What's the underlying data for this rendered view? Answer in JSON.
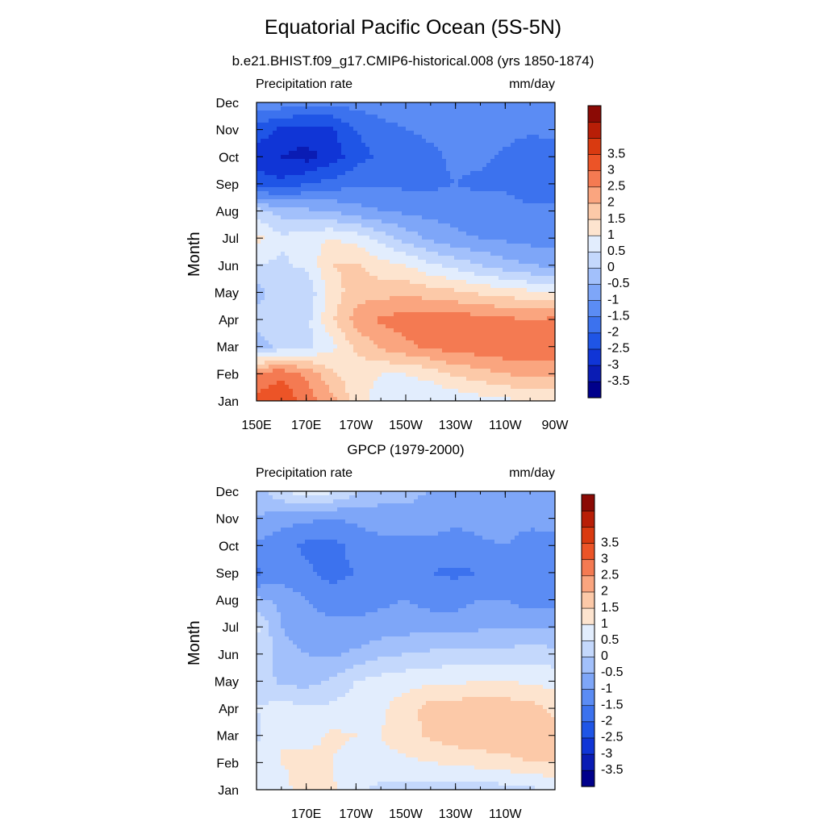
{
  "figure": {
    "title": "Equatorial Pacific Ocean (5S-5N)",
    "subtitle": "b.e21.BHIST.f09_g17.CMIP6-historical.008 (yrs 1850-1874)",
    "panel2_subtitle": "GPCP (1979-2000)"
  },
  "colors": {
    "colorbar": [
      "#00008b",
      "#0a1cb4",
      "#1035d6",
      "#1f55e6",
      "#3c72ee",
      "#5b8cf4",
      "#7ea6f8",
      "#a2c0fb",
      "#c4d8fc",
      "#e2edfd",
      "#fde4cf",
      "#fcc9a8",
      "#faa57f",
      "#f47a52",
      "#ec5427",
      "#d93a10",
      "#b81e07",
      "#8b0a05"
    ]
  },
  "chart_data": [
    {
      "type": "heatmap",
      "title": "b.e21.BHIST.f09_g17.CMIP6-historical.008 (yrs 1850-1874)",
      "left_label": "Precipitation rate",
      "right_label": "mm/day",
      "ylabel": "Month",
      "xlabel": "",
      "x_ticks": [
        "150E",
        "170E",
        "170W",
        "150W",
        "130W",
        "110W",
        "90W"
      ],
      "y_ticks": [
        "Jan",
        "Feb",
        "Mar",
        "Apr",
        "May",
        "Jun",
        "Jul",
        "Aug",
        "Sep",
        "Oct",
        "Nov",
        "Dec"
      ],
      "xlim": [
        150,
        270
      ],
      "colorbar_levels": [
        "-3.5",
        "-3",
        "-2.5",
        "-2",
        "-1.5",
        "-1",
        "-0.5",
        "0",
        "0.5",
        "1",
        "1.5",
        "2",
        "2.5",
        "3",
        "3.5"
      ],
      "grid_x": [
        150,
        160,
        170,
        180,
        190,
        200,
        210,
        220,
        230,
        240,
        250,
        260,
        270
      ],
      "grid_y": [
        "Jan",
        "Feb",
        "Mar",
        "Apr",
        "May",
        "Jun",
        "Jul",
        "Aug",
        "Sep",
        "Oct",
        "Nov",
        "Dec"
      ],
      "values": [
        [
          3.2,
          3.4,
          2.8,
          2.2,
          1.2,
          0.8,
          0.6,
          0.5,
          0.6,
          0.8,
          0.9,
          1.0,
          1.0
        ],
        [
          2.6,
          2.9,
          2.4,
          1.6,
          1.2,
          1.0,
          1.0,
          1.2,
          1.6,
          1.8,
          2.0,
          2.2,
          2.2
        ],
        [
          -0.3,
          0.2,
          0.4,
          0.8,
          1.6,
          2.1,
          2.4,
          2.6,
          2.8,
          2.8,
          2.9,
          2.9,
          2.8
        ],
        [
          0.2,
          0.4,
          0.3,
          1.4,
          2.2,
          2.6,
          2.7,
          2.9,
          2.8,
          2.7,
          2.6,
          2.5,
          2.6
        ],
        [
          -0.2,
          0.3,
          0.1,
          1.2,
          1.8,
          1.8,
          1.9,
          1.7,
          1.6,
          1.4,
          1.3,
          1.1,
          1.0
        ],
        [
          0.5,
          0.4,
          0.6,
          1.5,
          1.6,
          1.2,
          1.0,
          0.6,
          0.3,
          0.0,
          -0.3,
          -0.5,
          -0.6
        ],
        [
          1.2,
          0.6,
          0.8,
          1.0,
          0.8,
          0.3,
          -0.2,
          -0.6,
          -0.9,
          -1.0,
          -1.1,
          -1.2,
          -1.2
        ],
        [
          0.2,
          -0.2,
          -0.4,
          -0.5,
          -0.8,
          -1.0,
          -1.1,
          -1.2,
          -1.2,
          -1.3,
          -1.3,
          -1.4,
          -1.4
        ],
        [
          -2.2,
          -2.4,
          -2.0,
          -1.8,
          -1.6,
          -1.6,
          -1.6,
          -1.6,
          -1.5,
          -1.6,
          -1.6,
          -1.8,
          -1.8
        ],
        [
          -2.8,
          -3.0,
          -3.2,
          -2.8,
          -2.2,
          -1.9,
          -1.8,
          -1.6,
          -1.4,
          -1.4,
          -1.6,
          -1.9,
          -1.8
        ],
        [
          -2.2,
          -2.6,
          -2.7,
          -2.6,
          -2.0,
          -1.7,
          -1.5,
          -1.4,
          -1.3,
          -1.3,
          -1.3,
          -1.4,
          -1.3
        ],
        [
          -1.1,
          -1.2,
          -1.4,
          -1.4,
          -1.3,
          -1.2,
          -1.2,
          -1.1,
          -1.1,
          -1.0,
          -1.0,
          -1.0,
          -1.0
        ]
      ]
    },
    {
      "type": "heatmap",
      "title": "GPCP (1979-2000)",
      "left_label": "Precipitation rate",
      "right_label": "mm/day",
      "ylabel": "Month",
      "xlabel": "",
      "x_ticks": [
        "170E",
        "170W",
        "150W",
        "130W",
        "110W"
      ],
      "y_ticks": [
        "Jan",
        "Feb",
        "Mar",
        "Apr",
        "May",
        "Jun",
        "Jul",
        "Aug",
        "Sep",
        "Oct",
        "Nov",
        "Dec"
      ],
      "xlim": [
        150,
        270
      ],
      "colorbar_levels": [
        "-3.5",
        "-3",
        "-2.5",
        "-2",
        "-1.5",
        "-1",
        "-0.5",
        "0",
        "0.5",
        "1",
        "1.5",
        "2",
        "2.5",
        "3",
        "3.5"
      ],
      "grid_x": [
        150,
        160,
        170,
        180,
        190,
        200,
        210,
        220,
        230,
        240,
        250,
        260,
        270
      ],
      "grid_y": [
        "Jan",
        "Feb",
        "Mar",
        "Apr",
        "May",
        "Jun",
        "Jul",
        "Aug",
        "Sep",
        "Oct",
        "Nov",
        "Dec"
      ],
      "values": [
        [
          0.5,
          0.8,
          1.3,
          1.1,
          0.6,
          0.4,
          0.3,
          0.3,
          0.2,
          0.2,
          0.3,
          0.4,
          0.5
        ],
        [
          0.6,
          1.0,
          1.2,
          1.0,
          0.8,
          0.8,
          0.9,
          1.0,
          1.1,
          1.2,
          1.3,
          1.5,
          1.5
        ],
        [
          0.4,
          1.0,
          0.8,
          1.1,
          1.0,
          1.0,
          1.3,
          1.6,
          1.8,
          1.9,
          1.9,
          2.0,
          1.6
        ],
        [
          0.5,
          0.7,
          0.6,
          0.6,
          0.8,
          0.9,
          1.3,
          1.7,
          1.8,
          1.8,
          1.8,
          1.7,
          1.4
        ],
        [
          0.3,
          -0.1,
          -0.2,
          0.1,
          0.5,
          0.7,
          0.8,
          0.9,
          0.9,
          1.0,
          1.0,
          0.9,
          0.8
        ],
        [
          0.5,
          -0.3,
          -0.5,
          -0.6,
          -0.4,
          -0.1,
          0.0,
          0.1,
          0.2,
          0.2,
          0.2,
          0.3,
          0.2
        ],
        [
          0.6,
          -0.5,
          -0.8,
          -0.9,
          -0.9,
          -0.8,
          -0.7,
          -0.7,
          -0.7,
          -0.6,
          -0.6,
          -0.6,
          -0.6
        ],
        [
          -0.4,
          -0.6,
          -1.0,
          -1.2,
          -1.2,
          -1.1,
          -1.0,
          -1.2,
          -1.2,
          -1.0,
          -1.0,
          -1.2,
          -1.2
        ],
        [
          -1.6,
          -1.3,
          -1.4,
          -1.7,
          -1.5,
          -1.3,
          -1.4,
          -1.5,
          -1.6,
          -1.5,
          -1.2,
          -1.5,
          -1.5
        ],
        [
          -1.1,
          -1.3,
          -1.6,
          -1.7,
          -1.3,
          -1.1,
          -1.3,
          -1.2,
          -1.2,
          -1.1,
          -1.0,
          -1.3,
          -1.2
        ],
        [
          -0.5,
          -0.8,
          -0.9,
          -1.0,
          -0.9,
          -0.8,
          -0.6,
          -0.7,
          -0.9,
          -0.8,
          -0.7,
          -0.8,
          -0.8
        ],
        [
          -0.3,
          0.4,
          0.9,
          0.6,
          0.1,
          -0.2,
          -0.4,
          -0.5,
          -0.6,
          -0.6,
          -0.6,
          -0.6,
          -0.6
        ]
      ]
    }
  ]
}
